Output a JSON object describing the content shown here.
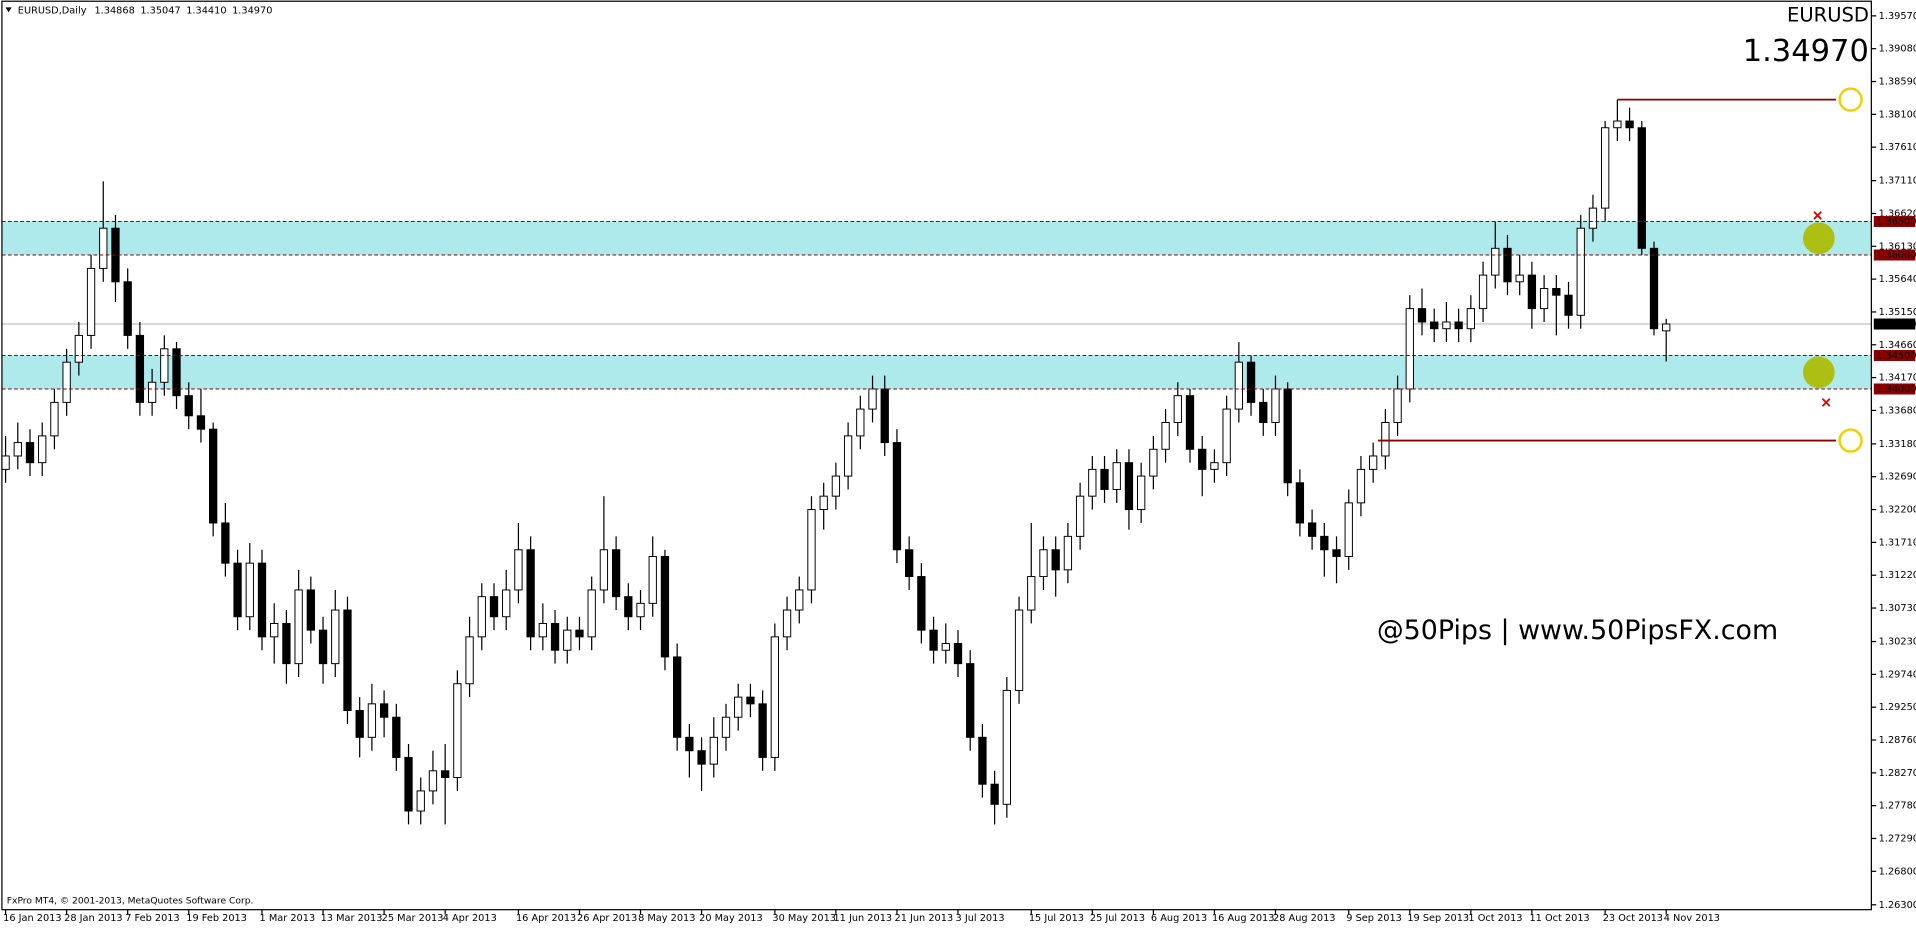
{
  "chart_data": {
    "type": "candlestick",
    "symbol": "EURUSD,Daily",
    "ohlc_labels": [
      "1.34868",
      "1.35047",
      "1.34410",
      "1.34970"
    ],
    "title": "EURUSD",
    "footer": "FxPro MT4, © 2001-2013, MetaQuotes Software Corp.",
    "watermark": "@50Pips | www.50PipsFX.com",
    "up_color": "#ffffff",
    "down_color": "#000000",
    "title_color": "#1a7a1a",
    "watermark_color": "#8b1010",
    "line_color": "#8b0000",
    "zone_color": "#aee9ec",
    "xlim": [
      -0.3,
      152.8
    ],
    "ylim": [
      1.26227,
      1.39734
    ],
    "xticks": [
      {
        "value": 0,
        "label": "16 Jan 2013"
      },
      {
        "value": 5,
        "label": "28 Jan 2013"
      },
      {
        "value": 10,
        "label": "7 Feb 2013"
      },
      {
        "value": 15,
        "label": "19 Feb 2013"
      },
      {
        "value": 21,
        "label": "1 Mar 2013"
      },
      {
        "value": 26,
        "label": "13 Mar 2013"
      },
      {
        "value": 31,
        "label": "25 Mar 2013"
      },
      {
        "value": 36,
        "label": "4 Apr 2013"
      },
      {
        "value": 42,
        "label": "16 Apr 2013"
      },
      {
        "value": 47,
        "label": "26 Apr 2013"
      },
      {
        "value": 52,
        "label": "8 May 2013"
      },
      {
        "value": 57,
        "label": "20 May 2013"
      },
      {
        "value": 63,
        "label": "30 May 2013"
      },
      {
        "value": 68,
        "label": "11 Jun 2013"
      },
      {
        "value": 73,
        "label": "21 Jun 2013"
      },
      {
        "value": 78,
        "label": "3 Jul 2013"
      },
      {
        "value": 84,
        "label": "15 Jul 2013"
      },
      {
        "value": 89,
        "label": "25 Jul 2013"
      },
      {
        "value": 94,
        "label": "6 Aug 2013"
      },
      {
        "value": 99,
        "label": "16 Aug 2013"
      },
      {
        "value": 104,
        "label": "28 Aug 2013"
      },
      {
        "value": 110,
        "label": "9 Sep 2013"
      },
      {
        "value": 115,
        "label": "19 Sep 2013"
      },
      {
        "value": 120,
        "label": "1 Oct 2013"
      },
      {
        "value": 125,
        "label": "11 Oct 2013"
      },
      {
        "value": 131,
        "label": "23 Oct 2013"
      },
      {
        "value": 136,
        "label": "4 Nov 2013"
      }
    ],
    "yticks": [
      {
        "value": 1.3957,
        "label": "1.39570"
      },
      {
        "value": 1.3908,
        "label": "1.39080"
      },
      {
        "value": 1.3859,
        "label": "1.38590"
      },
      {
        "value": 1.381,
        "label": "1.38100"
      },
      {
        "value": 1.3761,
        "label": "1.37610"
      },
      {
        "value": 1.3711,
        "label": "1.37110"
      },
      {
        "value": 1.3662,
        "label": "1.36620"
      },
      {
        "value": 1.3613,
        "label": "1.36130"
      },
      {
        "value": 1.3564,
        "label": "1.35640"
      },
      {
        "value": 1.3515,
        "label": "1.35150"
      },
      {
        "value": 1.3466,
        "label": "1.34660"
      },
      {
        "value": 1.3417,
        "label": "1.34170"
      },
      {
        "value": 1.3368,
        "label": "1.33680"
      },
      {
        "value": 1.3318,
        "label": "1.33180"
      },
      {
        "value": 1.3269,
        "label": "1.32690"
      },
      {
        "value": 1.322,
        "label": "1.32200"
      },
      {
        "value": 1.3171,
        "label": "1.31710"
      },
      {
        "value": 1.3122,
        "label": "1.31220"
      },
      {
        "value": 1.3073,
        "label": "1.30730"
      },
      {
        "value": 1.3023,
        "label": "1.30230"
      },
      {
        "value": 1.2974,
        "label": "1.29740"
      },
      {
        "value": 1.2925,
        "label": "1.29250"
      },
      {
        "value": 1.2876,
        "label": "1.28760"
      },
      {
        "value": 1.2827,
        "label": "1.28270"
      },
      {
        "value": 1.2778,
        "label": "1.27780"
      },
      {
        "value": 1.2729,
        "label": "1.27290"
      },
      {
        "value": 1.268,
        "label": "1.26800"
      },
      {
        "value": 1.263,
        "label": "1.26300"
      }
    ],
    "zones": [
      {
        "high": {
          "value": 1.365,
          "label": "1.36500"
        },
        "low": {
          "value": 1.36,
          "label": "1.36000"
        }
      },
      {
        "high": {
          "value": 1.345,
          "label": "1.34500"
        },
        "low": {
          "value": 1.34,
          "label": "1.34000"
        }
      }
    ],
    "lines": [
      {
        "value": 1.3832,
        "from": 132
      },
      {
        "value": 1.3323,
        "from": 112.4
      }
    ],
    "candles": [
      [
        1.328,
        1.333,
        1.326,
        1.33
      ],
      [
        1.33,
        1.335,
        1.328,
        1.332
      ],
      [
        1.332,
        1.334,
        1.327,
        1.329
      ],
      [
        1.329,
        1.335,
        1.327,
        1.333
      ],
      [
        1.333,
        1.34,
        1.331,
        1.338
      ],
      [
        1.338,
        1.346,
        1.336,
        1.344
      ],
      [
        1.344,
        1.35,
        1.342,
        1.348
      ],
      [
        1.348,
        1.36,
        1.346,
        1.358
      ],
      [
        1.358,
        1.371,
        1.356,
        1.364
      ],
      [
        1.364,
        1.366,
        1.353,
        1.356
      ],
      [
        1.356,
        1.358,
        1.346,
        1.348
      ],
      [
        1.348,
        1.35,
        1.336,
        1.338
      ],
      [
        1.338,
        1.343,
        1.336,
        1.341
      ],
      [
        1.341,
        1.348,
        1.339,
        1.346
      ],
      [
        1.346,
        1.347,
        1.337,
        1.339
      ],
      [
        1.339,
        1.341,
        1.334,
        1.336
      ],
      [
        1.336,
        1.34,
        1.332,
        1.334
      ],
      [
        1.334,
        1.335,
        1.318,
        1.32
      ],
      [
        1.32,
        1.323,
        1.312,
        1.314
      ],
      [
        1.314,
        1.316,
        1.304,
        1.306
      ],
      [
        1.306,
        1.317,
        1.304,
        1.314
      ],
      [
        1.314,
        1.316,
        1.301,
        1.303
      ],
      [
        1.303,
        1.308,
        1.299,
        1.305
      ],
      [
        1.305,
        1.307,
        1.296,
        1.299
      ],
      [
        1.299,
        1.313,
        1.297,
        1.31
      ],
      [
        1.31,
        1.312,
        1.302,
        1.304
      ],
      [
        1.304,
        1.306,
        1.296,
        1.299
      ],
      [
        1.299,
        1.31,
        1.297,
        1.307
      ],
      [
        1.307,
        1.309,
        1.29,
        1.292
      ],
      [
        1.292,
        1.294,
        1.285,
        1.288
      ],
      [
        1.288,
        1.296,
        1.286,
        1.293
      ],
      [
        1.293,
        1.295,
        1.288,
        1.291
      ],
      [
        1.291,
        1.293,
        1.283,
        1.285
      ],
      [
        1.285,
        1.287,
        1.275,
        1.277
      ],
      [
        1.277,
        1.282,
        1.275,
        1.28
      ],
      [
        1.28,
        1.286,
        1.278,
        1.283
      ],
      [
        1.283,
        1.287,
        1.275,
        1.282
      ],
      [
        1.282,
        1.298,
        1.28,
        1.296
      ],
      [
        1.296,
        1.306,
        1.294,
        1.303
      ],
      [
        1.303,
        1.311,
        1.301,
        1.309
      ],
      [
        1.309,
        1.311,
        1.304,
        1.306
      ],
      [
        1.306,
        1.313,
        1.304,
        1.31
      ],
      [
        1.31,
        1.32,
        1.308,
        1.316
      ],
      [
        1.316,
        1.318,
        1.301,
        1.303
      ],
      [
        1.303,
        1.308,
        1.301,
        1.305
      ],
      [
        1.305,
        1.307,
        1.299,
        1.301
      ],
      [
        1.301,
        1.306,
        1.299,
        1.304
      ],
      [
        1.304,
        1.306,
        1.301,
        1.303
      ],
      [
        1.303,
        1.312,
        1.301,
        1.31
      ],
      [
        1.31,
        1.324,
        1.308,
        1.316
      ],
      [
        1.316,
        1.318,
        1.307,
        1.309
      ],
      [
        1.309,
        1.311,
        1.304,
        1.306
      ],
      [
        1.306,
        1.31,
        1.304,
        1.308
      ],
      [
        1.308,
        1.318,
        1.306,
        1.315
      ],
      [
        1.315,
        1.316,
        1.298,
        1.3
      ],
      [
        1.3,
        1.302,
        1.286,
        1.288
      ],
      [
        1.288,
        1.29,
        1.282,
        1.286
      ],
      [
        1.286,
        1.288,
        1.28,
        1.284
      ],
      [
        1.284,
        1.291,
        1.282,
        1.288
      ],
      [
        1.288,
        1.293,
        1.286,
        1.291
      ],
      [
        1.291,
        1.296,
        1.289,
        1.294
      ],
      [
        1.294,
        1.296,
        1.291,
        1.293
      ],
      [
        1.293,
        1.295,
        1.283,
        1.285
      ],
      [
        1.285,
        1.305,
        1.283,
        1.303
      ],
      [
        1.303,
        1.309,
        1.301,
        1.307
      ],
      [
        1.307,
        1.312,
        1.305,
        1.31
      ],
      [
        1.31,
        1.324,
        1.308,
        1.322
      ],
      [
        1.322,
        1.326,
        1.319,
        1.324
      ],
      [
        1.324,
        1.329,
        1.322,
        1.327
      ],
      [
        1.327,
        1.335,
        1.325,
        1.333
      ],
      [
        1.333,
        1.339,
        1.331,
        1.337
      ],
      [
        1.337,
        1.342,
        1.335,
        1.34
      ],
      [
        1.34,
        1.342,
        1.33,
        1.332
      ],
      [
        1.332,
        1.334,
        1.314,
        1.316
      ],
      [
        1.316,
        1.318,
        1.31,
        1.312
      ],
      [
        1.312,
        1.314,
        1.302,
        1.304
      ],
      [
        1.304,
        1.306,
        1.299,
        1.301
      ],
      [
        1.301,
        1.305,
        1.299,
        1.302
      ],
      [
        1.302,
        1.304,
        1.297,
        1.299
      ],
      [
        1.299,
        1.301,
        1.286,
        1.288
      ],
      [
        1.288,
        1.29,
        1.279,
        1.281
      ],
      [
        1.281,
        1.283,
        1.275,
        1.278
      ],
      [
        1.278,
        1.297,
        1.276,
        1.295
      ],
      [
        1.295,
        1.309,
        1.293,
        1.307
      ],
      [
        1.307,
        1.32,
        1.305,
        1.312
      ],
      [
        1.312,
        1.318,
        1.31,
        1.316
      ],
      [
        1.316,
        1.318,
        1.309,
        1.313
      ],
      [
        1.313,
        1.32,
        1.311,
        1.318
      ],
      [
        1.318,
        1.326,
        1.316,
        1.324
      ],
      [
        1.324,
        1.33,
        1.322,
        1.328
      ],
      [
        1.328,
        1.33,
        1.323,
        1.325
      ],
      [
        1.325,
        1.331,
        1.323,
        1.329
      ],
      [
        1.329,
        1.331,
        1.319,
        1.322
      ],
      [
        1.322,
        1.329,
        1.32,
        1.327
      ],
      [
        1.327,
        1.333,
        1.325,
        1.331
      ],
      [
        1.331,
        1.337,
        1.329,
        1.335
      ],
      [
        1.335,
        1.341,
        1.333,
        1.339
      ],
      [
        1.339,
        1.34,
        1.329,
        1.331
      ],
      [
        1.331,
        1.333,
        1.324,
        1.328
      ],
      [
        1.328,
        1.331,
        1.326,
        1.329
      ],
      [
        1.329,
        1.339,
        1.327,
        1.337
      ],
      [
        1.337,
        1.347,
        1.335,
        1.344
      ],
      [
        1.344,
        1.345,
        1.336,
        1.338
      ],
      [
        1.338,
        1.34,
        1.333,
        1.335
      ],
      [
        1.335,
        1.342,
        1.333,
        1.34
      ],
      [
        1.34,
        1.341,
        1.324,
        1.326
      ],
      [
        1.326,
        1.328,
        1.318,
        1.32
      ],
      [
        1.32,
        1.322,
        1.316,
        1.318
      ],
      [
        1.318,
        1.32,
        1.312,
        1.316
      ],
      [
        1.316,
        1.318,
        1.311,
        1.315
      ],
      [
        1.315,
        1.325,
        1.313,
        1.323
      ],
      [
        1.323,
        1.33,
        1.321,
        1.328
      ],
      [
        1.328,
        1.332,
        1.326,
        1.33
      ],
      [
        1.33,
        1.337,
        1.328,
        1.335
      ],
      [
        1.335,
        1.342,
        1.333,
        1.34
      ],
      [
        1.34,
        1.354,
        1.338,
        1.352
      ],
      [
        1.352,
        1.355,
        1.348,
        1.35
      ],
      [
        1.35,
        1.352,
        1.347,
        1.349
      ],
      [
        1.349,
        1.353,
        1.347,
        1.35
      ],
      [
        1.35,
        1.352,
        1.347,
        1.349
      ],
      [
        1.349,
        1.354,
        1.347,
        1.352
      ],
      [
        1.352,
        1.359,
        1.35,
        1.357
      ],
      [
        1.357,
        1.365,
        1.355,
        1.361
      ],
      [
        1.361,
        1.363,
        1.354,
        1.356
      ],
      [
        1.356,
        1.36,
        1.354,
        1.357
      ],
      [
        1.357,
        1.359,
        1.349,
        1.352
      ],
      [
        1.352,
        1.357,
        1.35,
        1.355
      ],
      [
        1.355,
        1.357,
        1.348,
        1.354
      ],
      [
        1.354,
        1.356,
        1.349,
        1.351
      ],
      [
        1.351,
        1.366,
        1.349,
        1.364
      ],
      [
        1.364,
        1.369,
        1.362,
        1.367
      ],
      [
        1.367,
        1.38,
        1.365,
        1.379
      ],
      [
        1.379,
        1.3832,
        1.377,
        1.38
      ],
      [
        1.38,
        1.382,
        1.377,
        1.379
      ],
      [
        1.379,
        1.38,
        1.36,
        1.361
      ],
      [
        1.361,
        1.362,
        1.348,
        1.349
      ],
      [
        1.34868,
        1.35047,
        1.3441,
        1.3497
      ]
    ]
  }
}
